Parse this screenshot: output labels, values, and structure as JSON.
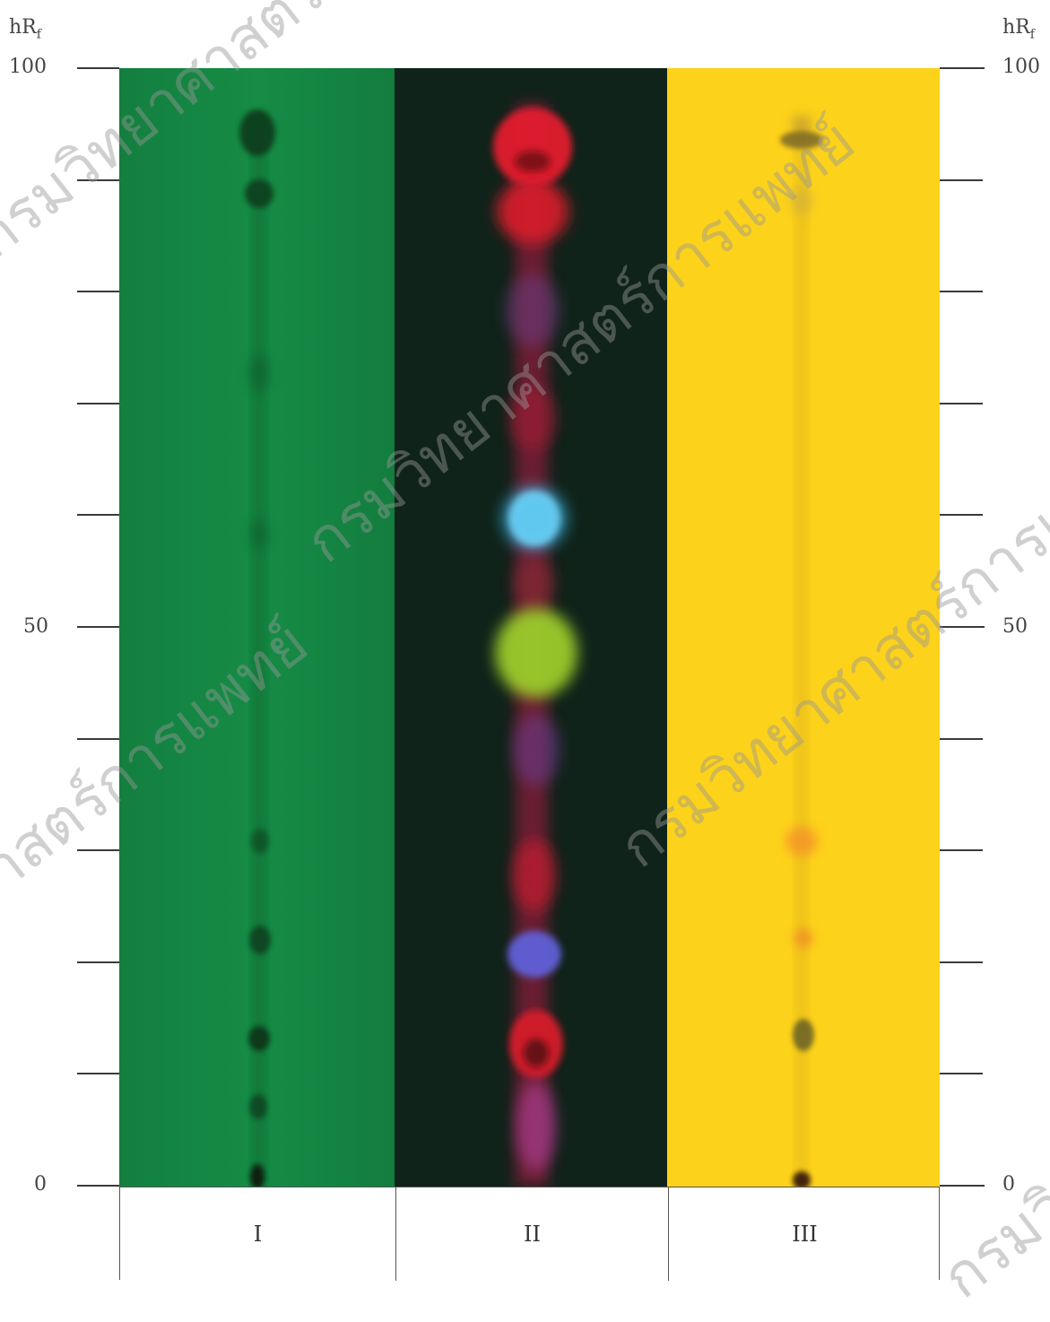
{
  "axis": {
    "title_main": "hR",
    "title_sub": "f",
    "tick_labels": [
      {
        "value": 100,
        "text": "100"
      },
      {
        "value": 50,
        "text": "50"
      },
      {
        "value": 0,
        "text": "0"
      }
    ],
    "tick_values": [
      100,
      90,
      80,
      70,
      60,
      50,
      40,
      30,
      20,
      10,
      0
    ]
  },
  "lanes": [
    {
      "label": "I",
      "background": "#148a45"
    },
    {
      "label": "II",
      "background": "#0e2418"
    },
    {
      "label": "III",
      "background": "#fdd21a"
    }
  ],
  "watermark_text": "กรมวิทยาศาสตร์การแพทย์"
}
